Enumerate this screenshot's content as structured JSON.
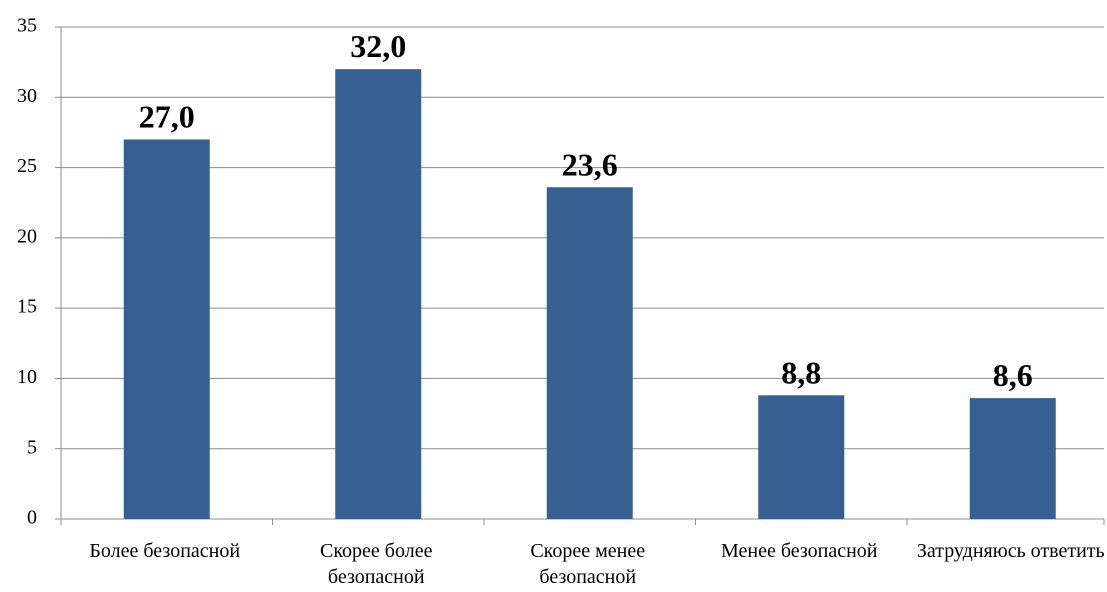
{
  "chart_data": {
    "type": "bar",
    "categories": [
      "Более безопасной",
      "Скорее более безопасной",
      "Скорее менее безопасной",
      "Менее безопасной",
      "Затрудняюсь ответить"
    ],
    "values": [
      27.0,
      32.0,
      23.6,
      8.8,
      8.6
    ],
    "value_labels": [
      "27,0",
      "32,0",
      "23,6",
      "8,8",
      "8,6"
    ],
    "color": "#376092",
    "ylim": [
      0,
      35
    ],
    "yticks": [
      0,
      5,
      10,
      15,
      20,
      25,
      30,
      35
    ],
    "grid": true
  }
}
